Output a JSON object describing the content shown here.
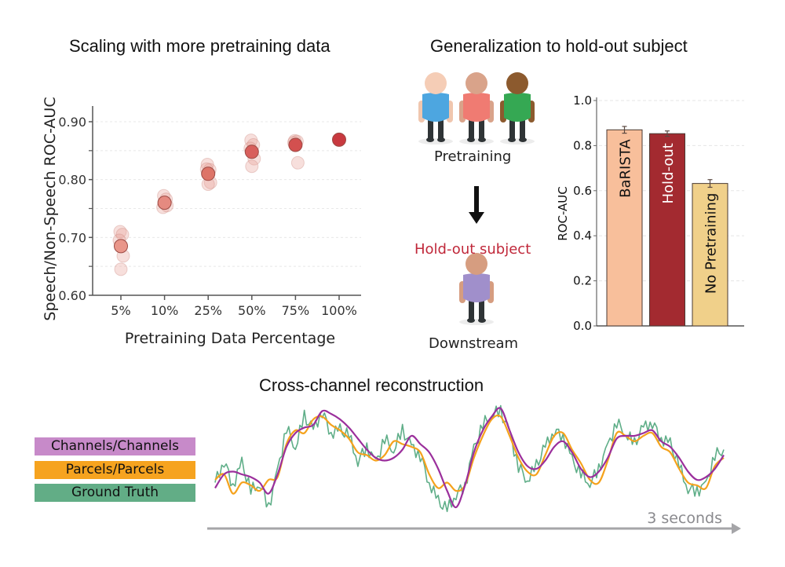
{
  "panels": {
    "scaling": {
      "title": "Scaling with more pretraining data"
    },
    "generalization": {
      "title": "Generalization to hold-out subject",
      "pretraining_label": "Pretraining",
      "holdout_label": "Hold-out subject",
      "downstream_label": "Downstream",
      "holdout_color": "#c0283a",
      "people": [
        {
          "role": "pretraining-subject-1",
          "skin": "#f5cdb6",
          "shirt": "#4da6e0",
          "limb": "#f0c6ae"
        },
        {
          "role": "pretraining-subject-2",
          "skin": "#d9a38a",
          "shirt": "#f07b72",
          "limb": "#d9a38a"
        },
        {
          "role": "pretraining-subject-3",
          "skin": "#8c5a2e",
          "shirt": "#35a853",
          "limb": "#8c5a2e"
        },
        {
          "role": "holdout-subject",
          "skin": "#d69d80",
          "shirt": "#a08fcb",
          "limb": "#d69d80"
        }
      ]
    },
    "reconstruction": {
      "title": "Cross-channel reconstruction",
      "time_label": "3 seconds",
      "legend": [
        {
          "label": "Channels/Channels",
          "color": "#c78ac9",
          "line_color": "#9b2f9c"
        },
        {
          "label": "Parcels/Parcels",
          "color": "#f6a31f",
          "line_color": "#f5a21c"
        },
        {
          "label": "Ground Truth",
          "color": "#62ad86",
          "line_color": "#5fae88"
        }
      ]
    }
  },
  "chart_data": [
    {
      "type": "scatter",
      "title": "Scaling with more pretraining data",
      "xlabel": "Pretraining Data Percentage",
      "ylabel": "Speech/Non-Speech ROC-AUC",
      "categories": [
        "5%",
        "10%",
        "25%",
        "50%",
        "75%",
        "100%"
      ],
      "ylim": [
        0.6,
        0.92
      ],
      "yticks": [
        "0.60",
        "0.70",
        "0.80",
        "0.90"
      ],
      "ytick_values": [
        0.6,
        0.7,
        0.8,
        0.9
      ],
      "minor_ticks": [
        0.65,
        0.75,
        0.85
      ],
      "grid": true,
      "individual_runs": [
        [
          0.71,
          0.705,
          0.695,
          0.668,
          0.645
        ],
        [
          0.772,
          0.766,
          0.752,
          0.755
        ],
        [
          0.826,
          0.817,
          0.818,
          0.795,
          0.792
        ],
        [
          0.868,
          0.86,
          0.854,
          0.836,
          0.823
        ],
        [
          0.867,
          0.866,
          0.864,
          0.829
        ],
        []
      ],
      "means": [
        0.685,
        0.76,
        0.81,
        0.848,
        0.86,
        0.869
      ],
      "mean_colors": [
        "#e9968a",
        "#e58a80",
        "#dd7468",
        "#d85f5c",
        "#d3504f",
        "#c8393f"
      ]
    },
    {
      "type": "bar",
      "title": "Generalization to hold-out subject",
      "xlabel": "",
      "ylabel": "ROC-AUC",
      "categories": [
        "BaRISTA",
        "Hold-out",
        "No Pretraining"
      ],
      "values": [
        0.87,
        0.853,
        0.632
      ],
      "errors": [
        0.015,
        0.012,
        0.017
      ],
      "colors": [
        "#f8bf9b",
        "#a32a30",
        "#f0d08a"
      ],
      "label_colors": [
        "#111111",
        "#ffffff",
        "#111111"
      ],
      "ylim": [
        0.0,
        1.0
      ],
      "yticks": [
        "0.0",
        "0.2",
        "0.4",
        "0.6",
        "0.8",
        "1.0"
      ],
      "ytick_values": [
        0.0,
        0.2,
        0.4,
        0.6,
        0.8,
        1.0
      ],
      "grid": true
    },
    {
      "type": "line",
      "title": "Cross-channel reconstruction",
      "xlabel": "3 seconds",
      "series": [
        {
          "name": "Channels/Channels",
          "color": "#9b2f9c",
          "values": [
            -0.45,
            -0.2,
            -0.15,
            -0.2,
            -0.25,
            -0.35,
            -0.55,
            -0.2,
            0.3,
            0.55,
            0.65,
            0.7,
            0.95,
            0.9,
            0.8,
            0.65,
            0.45,
            0.25,
            0.1,
            0.05,
            0.1,
            0.25,
            0.5,
            0.35,
            0.2,
            -0.1,
            -0.5,
            -0.8,
            -0.4,
            0.2,
            0.6,
            0.85,
            1.0,
            0.6,
            0.2,
            -0.05,
            -0.1,
            0.05,
            0.3,
            0.4,
            0.2,
            -0.1,
            -0.25,
            -0.15,
            0.1,
            0.45,
            0.5,
            0.5,
            0.55,
            0.6,
            0.4,
            0.3,
            0.1,
            -0.15,
            -0.3,
            -0.25,
            -0.1,
            0.15
          ]
        },
        {
          "name": "Parcels/Parcels",
          "color": "#f5a21c",
          "values": [
            -0.3,
            -0.2,
            -0.55,
            -0.35,
            -0.4,
            -0.5,
            -0.3,
            -0.25,
            0.35,
            0.6,
            0.55,
            0.8,
            0.85,
            0.7,
            0.6,
            0.45,
            0.2,
            0.15,
            0.05,
            0.15,
            0.4,
            0.35,
            0.3,
            0.2,
            -0.2,
            -0.45,
            -0.35,
            -0.5,
            -0.4,
            0.1,
            0.5,
            0.8,
            0.85,
            0.5,
            0.1,
            -0.15,
            -0.2,
            0.15,
            0.5,
            0.55,
            0.25,
            0.0,
            -0.3,
            -0.35,
            0.05,
            0.55,
            0.5,
            0.4,
            0.5,
            0.55,
            0.3,
            0.2,
            -0.1,
            -0.35,
            -0.4,
            -0.45,
            -0.05,
            0.1
          ]
        },
        {
          "name": "Ground Truth",
          "color": "#5fae88",
          "values": [
            -0.35,
            0.05,
            -0.4,
            0.0,
            -0.5,
            -0.35,
            -0.8,
            -0.15,
            0.65,
            0.3,
            0.85,
            0.6,
            0.95,
            0.55,
            0.6,
            0.5,
            0.05,
            0.3,
            0.0,
            0.45,
            0.25,
            0.6,
            0.3,
            0.15,
            -0.35,
            -0.7,
            -0.85,
            -0.55,
            -0.4,
            0.25,
            0.7,
            0.9,
            0.95,
            0.55,
            -0.05,
            -0.3,
            -0.05,
            0.3,
            0.6,
            0.5,
            0.05,
            -0.2,
            -0.35,
            -0.1,
            0.3,
            0.75,
            0.55,
            0.35,
            0.65,
            0.75,
            0.45,
            0.35,
            -0.05,
            -0.45,
            -0.5,
            -0.4,
            0.15,
            0.25
          ]
        }
      ]
    }
  ]
}
